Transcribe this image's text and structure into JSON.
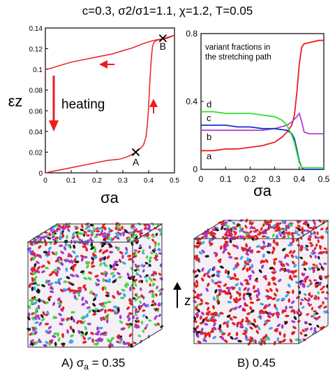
{
  "title": "c=0.3, σ2/σ1=1.1, χ=1.2, T=0.05",
  "chart_data": [
    {
      "type": "line",
      "xlabel": "σa",
      "ylabel": "εz",
      "xlim": [
        0,
        0.5
      ],
      "ylim": [
        0,
        0.14
      ],
      "xticks": [
        "0",
        "0.1",
        "0.2",
        "0.3",
        "0.4",
        "0.5"
      ],
      "yticks": [
        "0",
        "0.02",
        "0.04",
        "0.06",
        "0.08",
        "0.1",
        "0.12",
        "0.14"
      ],
      "grid": false,
      "annotations": {
        "heating": "heating",
        "point_a": "A",
        "point_b": "B"
      },
      "color": "#ee1c1c",
      "markers": [
        {
          "label": "A",
          "x": 0.35,
          "y": 0.02
        },
        {
          "label": "B",
          "x": 0.455,
          "y": 0.13
        }
      ],
      "series": [
        {
          "x": [
            0,
            0.04,
            0.08,
            0.12,
            0.16,
            0.2,
            0.24,
            0.28,
            0.3,
            0.33,
            0.35,
            0.37,
            0.38,
            0.39,
            0.395,
            0.4,
            0.405,
            0.41,
            0.415,
            0.42,
            0.43,
            0.45,
            0.47,
            0.5
          ],
          "y": [
            0,
            0.002,
            0.004,
            0.006,
            0.008,
            0.01,
            0.012,
            0.013,
            0.014,
            0.017,
            0.02,
            0.024,
            0.027,
            0.035,
            0.047,
            0.065,
            0.09,
            0.11,
            0.122,
            0.126,
            0.128,
            0.129,
            0.13,
            0.133
          ]
        },
        {
          "x": [
            0.5,
            0.46,
            0.42,
            0.38,
            0.36,
            0.34,
            0.3,
            0.26,
            0.22,
            0.18,
            0.14,
            0.1,
            0.06,
            0.02,
            0
          ],
          "y": [
            0.133,
            0.13,
            0.128,
            0.125,
            0.123,
            0.121,
            0.118,
            0.115,
            0.113,
            0.111,
            0.109,
            0.107,
            0.104,
            0.101,
            0.1
          ]
        }
      ]
    },
    {
      "type": "line",
      "xlabel": "σa",
      "xlim": [
        0,
        0.5
      ],
      "ylim": [
        0,
        0.8
      ],
      "xticks": [
        "0",
        "0.1",
        "0.2",
        "0.3",
        "0.4",
        "0.5"
      ],
      "yticks": [
        "0",
        "0.4",
        "0.8"
      ],
      "annotation": [
        "variant fractions in",
        "the stretching path"
      ],
      "series": [
        {
          "name": "a",
          "color": "#ee1c1c",
          "x": [
            0,
            0.05,
            0.1,
            0.15,
            0.2,
            0.25,
            0.3,
            0.33,
            0.35,
            0.37,
            0.38,
            0.39,
            0.4,
            0.41,
            0.42,
            0.45,
            0.48,
            0.5
          ],
          "y": [
            0.11,
            0.11,
            0.12,
            0.12,
            0.13,
            0.14,
            0.16,
            0.19,
            0.22,
            0.26,
            0.32,
            0.45,
            0.62,
            0.72,
            0.74,
            0.75,
            0.76,
            0.76
          ]
        },
        {
          "name": "b",
          "color": "#a846d6",
          "x": [
            0,
            0.05,
            0.1,
            0.15,
            0.2,
            0.25,
            0.3,
            0.35,
            0.37,
            0.39,
            0.4,
            0.41,
            0.42,
            0.44,
            0.47,
            0.5
          ],
          "y": [
            0.23,
            0.23,
            0.23,
            0.23,
            0.23,
            0.23,
            0.24,
            0.26,
            0.28,
            0.31,
            0.33,
            0.28,
            0.22,
            0.21,
            0.21,
            0.21
          ]
        },
        {
          "name": "c",
          "color": "#1a2fcf",
          "x": [
            0,
            0.05,
            0.1,
            0.15,
            0.2,
            0.25,
            0.3,
            0.35,
            0.37,
            0.38,
            0.39,
            0.4,
            0.41,
            0.42,
            0.45,
            0.5
          ],
          "y": [
            0.26,
            0.26,
            0.26,
            0.25,
            0.25,
            0.24,
            0.24,
            0.23,
            0.21,
            0.18,
            0.12,
            0.05,
            0.01,
            0.0,
            0.0,
            0.0
          ]
        },
        {
          "name": "d",
          "color": "#2de02d",
          "x": [
            0,
            0.05,
            0.1,
            0.15,
            0.2,
            0.25,
            0.3,
            0.33,
            0.35,
            0.36,
            0.37,
            0.38,
            0.39,
            0.4,
            0.41,
            0.42,
            0.45,
            0.5
          ],
          "y": [
            0.34,
            0.34,
            0.33,
            0.33,
            0.33,
            0.32,
            0.31,
            0.29,
            0.26,
            0.23,
            0.2,
            0.16,
            0.1,
            0.04,
            0.01,
            0.01,
            0.01,
            0.01
          ]
        }
      ]
    }
  ],
  "snapshots": {
    "axis_label": "z",
    "captions": [
      {
        "prefix": "A) σ",
        "sub": "a",
        "value": " = 0.35"
      },
      {
        "prefix": "B) ",
        "sub": "",
        "value": "0.45"
      }
    ],
    "colors": [
      "#e42020",
      "#a03ad0",
      "#3aa8f0",
      "#4ad64a",
      "#1a1a1a"
    ]
  }
}
